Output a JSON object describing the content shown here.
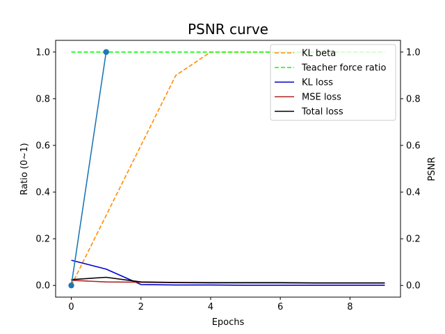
{
  "chart_data": {
    "type": "line",
    "title": "PSNR curve",
    "xlabel": "Epochs",
    "ylabel": "Ratio (0~1)",
    "y2label": "PSNR",
    "xlim": [
      -0.45,
      9.45
    ],
    "ylim": [
      -0.05,
      1.05
    ],
    "y2lim": [
      -0.05,
      1.05
    ],
    "xticks": [
      0,
      2,
      4,
      6,
      8
    ],
    "yticks": [
      0.0,
      0.2,
      0.4,
      0.6,
      0.8,
      1.0
    ],
    "y2ticks": [
      0.0,
      0.2,
      0.4,
      0.6,
      0.8,
      1.0
    ],
    "grid": false,
    "legend_position": "top-right",
    "series": [
      {
        "name": "KL beta",
        "axis": "left",
        "color": "#ff8c00",
        "style": "dashed",
        "x": [
          0,
          1,
          2,
          3,
          4,
          5,
          6,
          7,
          8,
          9
        ],
        "values": [
          0.0,
          0.3,
          0.6,
          0.9,
          1.0,
          1.0,
          1.0,
          1.0,
          1.0,
          1.0
        ]
      },
      {
        "name": "Teacher force ratio",
        "axis": "left",
        "color": "#00ff00",
        "style": "dashed",
        "x": [
          0,
          1,
          2,
          3,
          4,
          5,
          6,
          7,
          8,
          9
        ],
        "values": [
          1.0,
          1.0,
          1.0,
          1.0,
          1.0,
          1.0,
          1.0,
          1.0,
          1.0,
          1.0
        ]
      },
      {
        "name": "KL loss",
        "axis": "left",
        "color": "#0000cd",
        "style": "solid",
        "x": [
          0,
          1,
          2,
          3,
          4,
          5,
          6,
          7,
          8,
          9
        ],
        "values": [
          0.108,
          0.07,
          0.004,
          0.002,
          0.002,
          0.001,
          0.001,
          0.001,
          0.001,
          0.001
        ]
      },
      {
        "name": "MSE loss",
        "axis": "left",
        "color": "#b22222",
        "style": "solid",
        "x": [
          0,
          1,
          2,
          3,
          4,
          5,
          6,
          7,
          8,
          9
        ],
        "values": [
          0.022,
          0.015,
          0.014,
          0.012,
          0.011,
          0.011,
          0.011,
          0.01,
          0.01,
          0.01
        ]
      },
      {
        "name": "Total loss",
        "axis": "left",
        "color": "#000000",
        "style": "solid",
        "x": [
          0,
          1,
          2,
          3,
          4,
          5,
          6,
          7,
          8,
          9
        ],
        "values": [
          0.025,
          0.035,
          0.015,
          0.013,
          0.012,
          0.012,
          0.012,
          0.011,
          0.011,
          0.011
        ]
      },
      {
        "axis": "right",
        "color": "#1f77b4",
        "style": "solid",
        "marker": "circle",
        "x": [
          0,
          1
        ],
        "values": [
          0.0,
          1.0
        ]
      }
    ]
  }
}
